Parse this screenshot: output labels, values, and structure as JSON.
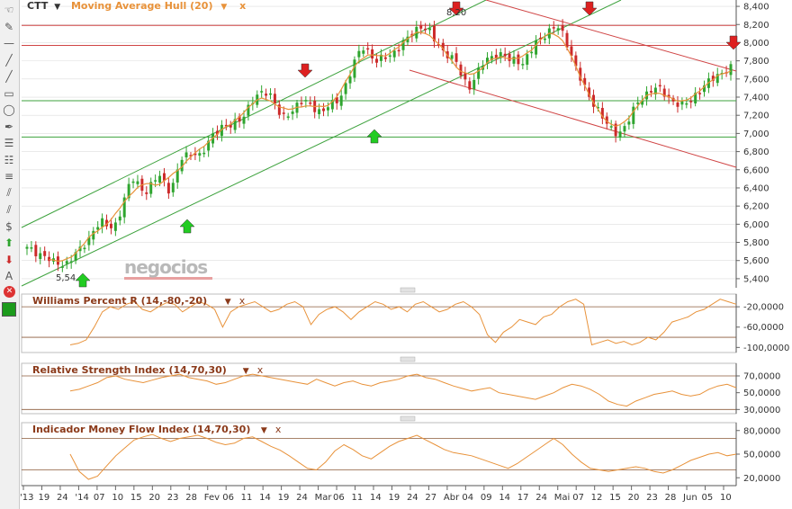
{
  "toolbar": {
    "tools": [
      {
        "name": "hand-icon",
        "glyph": "☜"
      },
      {
        "name": "draw-icon",
        "glyph": "✎"
      },
      {
        "name": "hline-icon",
        "glyph": "—"
      },
      {
        "name": "line-icon",
        "glyph": "╱"
      },
      {
        "name": "ray-icon",
        "glyph": "╱"
      },
      {
        "name": "rectangle-icon",
        "glyph": "▭"
      },
      {
        "name": "ellipse-icon",
        "glyph": "◯"
      },
      {
        "name": "pen-icon",
        "glyph": "✒"
      },
      {
        "name": "fibonacci-icon",
        "glyph": "☰"
      },
      {
        "name": "fib-grid-icon",
        "glyph": "☷"
      },
      {
        "name": "retracement-icon",
        "glyph": "≡"
      },
      {
        "name": "fan-icon",
        "glyph": "⫽"
      },
      {
        "name": "channel-icon",
        "glyph": "⫽"
      },
      {
        "name": "dollar-icon",
        "glyph": "$"
      },
      {
        "name": "arrow-up-icon",
        "glyph": "⬆"
      },
      {
        "name": "arrow-down-icon",
        "glyph": "⬇"
      },
      {
        "name": "text-icon",
        "glyph": "A"
      },
      {
        "name": "delete-icon",
        "glyph": "✕"
      },
      {
        "name": "color-icon",
        "glyph": ""
      }
    ]
  },
  "header": {
    "symbol": "CTT",
    "symbol_arrow": "▼",
    "indicator": "Moving Average Hull (20)",
    "indicator_arrow": "▼",
    "close": "x"
  },
  "watermark": "negocios",
  "annotations": {
    "low_label": "5,54",
    "high_label": "8,20"
  },
  "colors": {
    "up": "#2fa52f",
    "down": "#cc2a2a",
    "ma": "#e8923a",
    "channel_green": "#3da23d",
    "channel_red": "#d04545",
    "panel_title": "#8b3a1a",
    "header_title": "#e8923a",
    "grid": "#dddddd"
  },
  "x_axis": {
    "labels": [
      "'13",
      "19",
      "24",
      "'14",
      "07",
      "10",
      "15",
      "20",
      "23",
      "28",
      "Fev",
      "06",
      "11",
      "14",
      "19",
      "24",
      "Mar",
      "06",
      "11",
      "14",
      "19",
      "24",
      "27",
      "Abr",
      "04",
      "09",
      "14",
      "17",
      "24",
      "Mai",
      "07",
      "12",
      "15",
      "20",
      "23",
      "28",
      "Jun",
      "05",
      "10"
    ]
  },
  "chart_data": [
    {
      "type": "candlestick",
      "title": "CTT",
      "overlay": "Moving Average Hull (20)",
      "y_ticks": [
        5.4,
        5.6,
        5.8,
        6.0,
        6.2,
        6.4,
        6.6,
        6.8,
        7.0,
        7.2,
        7.4,
        7.6,
        7.8,
        8.0,
        8.2,
        8.4
      ],
      "y_tick_labels": [
        "5,400",
        "5,600",
        "5,800",
        "6,000",
        "6,200",
        "6,400",
        "6,600",
        "6,800",
        "7,000",
        "7,200",
        "7,400",
        "7,600",
        "7,800",
        "8,000",
        "8,200",
        "8,400"
      ],
      "ylim": [
        5.3,
        8.47
      ],
      "n_bars": 160,
      "close_series": [
        5.73,
        5.7,
        5.68,
        5.63,
        5.57,
        5.56,
        5.58,
        5.65,
        5.72,
        5.82,
        5.95,
        6.02,
        5.98,
        5.97,
        6.15,
        6.38,
        6.52,
        6.4,
        6.35,
        6.48,
        6.55,
        6.38,
        6.45,
        6.72,
        6.78,
        6.8,
        6.72,
        6.9,
        7.02,
        7.08,
        7.05,
        7.12,
        7.18,
        7.28,
        7.38,
        7.45,
        7.48,
        7.32,
        7.15,
        7.22,
        7.3,
        7.36,
        7.32,
        7.28,
        7.24,
        7.3,
        7.33,
        7.45,
        7.62,
        7.8,
        7.96,
        7.92,
        7.78,
        7.82,
        7.86,
        7.92,
        7.98,
        8.06,
        8.15,
        8.2,
        8.12,
        8.0,
        7.92,
        7.86,
        7.78,
        7.6,
        7.52,
        7.64,
        7.76,
        7.84,
        7.88,
        7.86,
        7.8,
        7.82,
        7.78,
        7.88,
        8.0,
        8.08,
        8.14,
        8.18,
        8.08,
        7.92,
        7.7,
        7.52,
        7.38,
        7.3,
        7.16,
        7.04,
        7.0,
        7.06,
        7.18,
        7.32,
        7.42,
        7.48,
        7.5,
        7.44,
        7.38,
        7.33,
        7.3,
        7.36,
        7.46,
        7.52,
        7.58,
        7.64,
        7.7,
        7.72
      ],
      "support_lines": [
        7.96,
        7.36
      ],
      "resistance_lines": [
        8.19,
        7.97
      ],
      "annotations": [
        "5,54",
        "8,20"
      ]
    },
    {
      "type": "line",
      "title": "Williams Percent R (14,-80,-20)",
      "y_ticks": [
        -20,
        -60,
        -100
      ],
      "y_tick_labels": [
        "-20,0000",
        "-60,0000",
        "-100,0000"
      ],
      "ylim": [
        -110,
        5
      ],
      "guides": [
        -20,
        -80
      ],
      "values": [
        -95,
        -92,
        -85,
        -60,
        -30,
        -20,
        -25,
        -15,
        -10,
        -25,
        -30,
        -20,
        -12,
        -15,
        -30,
        -20,
        -10,
        -15,
        -25,
        -60,
        -30,
        -20,
        -15,
        -10,
        -20,
        -30,
        -25,
        -15,
        -10,
        -20,
        -55,
        -35,
        -25,
        -20,
        -30,
        -45,
        -30,
        -20,
        -10,
        -15,
        -25,
        -20,
        -30,
        -15,
        -10,
        -20,
        -30,
        -25,
        -15,
        -10,
        -20,
        -35,
        -75,
        -90,
        -70,
        -60,
        -45,
        -50,
        -55,
        -40,
        -35,
        -20,
        -10,
        -5,
        -15,
        -95,
        -90,
        -85,
        -92,
        -88,
        -95,
        -90,
        -80,
        -85,
        -70,
        -50,
        -45,
        -40,
        -30,
        -25,
        -15,
        -5,
        -10,
        -15
      ]
    },
    {
      "type": "line",
      "title": "Relative Strength Index (14,70,30)",
      "y_ticks": [
        70,
        50,
        30
      ],
      "y_tick_labels": [
        "70,0000",
        "50,0000",
        "30,0000"
      ],
      "ylim": [
        25,
        85
      ],
      "guides": [
        70,
        30
      ],
      "values": [
        52,
        54,
        58,
        62,
        68,
        70,
        66,
        64,
        62,
        65,
        68,
        70,
        72,
        68,
        66,
        64,
        60,
        62,
        66,
        70,
        72,
        70,
        68,
        66,
        64,
        62,
        60,
        66,
        62,
        58,
        62,
        64,
        60,
        58,
        62,
        64,
        66,
        70,
        72,
        68,
        66,
        62,
        58,
        55,
        52,
        54,
        56,
        50,
        48,
        46,
        44,
        42,
        46,
        50,
        56,
        60,
        58,
        54,
        48,
        40,
        36,
        34,
        40,
        44,
        48,
        50,
        52,
        48,
        46,
        48,
        54,
        58,
        60,
        56
      ],
      "title_gap": true
    },
    {
      "type": "line",
      "title": "Indicador Money Flow Index (14,70,30)",
      "y_ticks": [
        80,
        50,
        20
      ],
      "y_tick_labels": [
        "80,0000",
        "50,0000",
        "20,0000"
      ],
      "ylim": [
        10,
        90
      ],
      "guides": [
        70,
        30
      ],
      "values": [
        50,
        28,
        18,
        22,
        35,
        48,
        58,
        68,
        72,
        75,
        70,
        66,
        70,
        72,
        74,
        70,
        65,
        62,
        64,
        70,
        72,
        66,
        60,
        55,
        48,
        40,
        32,
        30,
        40,
        54,
        62,
        56,
        48,
        44,
        52,
        60,
        66,
        70,
        74,
        68,
        62,
        56,
        52,
        50,
        48,
        44,
        40,
        36,
        32,
        38,
        46,
        54,
        62,
        70,
        62,
        50,
        40,
        32,
        30,
        28,
        30,
        32,
        34,
        32,
        28,
        26,
        30,
        36,
        42,
        46,
        50,
        52,
        48,
        50
      ]
    }
  ]
}
